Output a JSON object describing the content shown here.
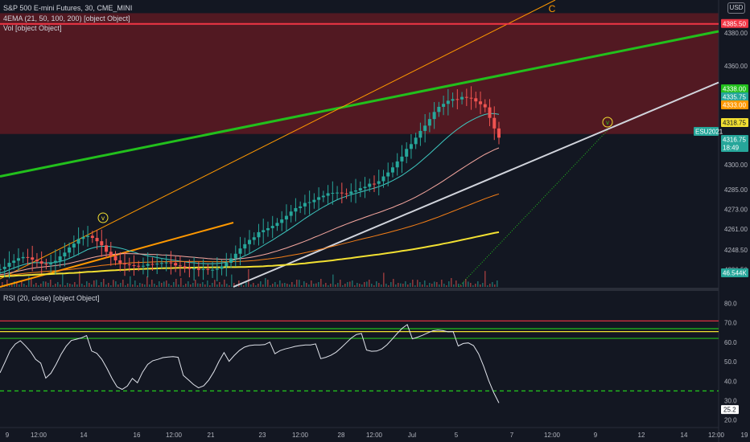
{
  "legend": {
    "title": "S&P 500 E-mini Futures, 30, CME_MINI",
    "ema": "4EMA (21, 50, 100, 200) [object Object]",
    "vol": "Vol [object Object]",
    "rsi": "RSI (20, close) [object Object]"
  },
  "currency": "USD",
  "annotations": {
    "wave_c": "C",
    "wave_v1": "v",
    "wave_v2": "v"
  },
  "colors": {
    "background": "#131722",
    "resistance_zone": "#5a1a22",
    "red_line": "#f23645",
    "green_line": "#22c01c",
    "white_line": "#d1d4dc",
    "orange": "#ff9800",
    "yellow": "#f2e032",
    "teal": "#26a69a",
    "rsi_line": "#e0e3eb"
  },
  "chart_data": [
    {
      "type": "candlestick",
      "title": "S&P 500 E-mini Futures, 30, CME_MINI",
      "x_ticks": [
        "9",
        "12:00",
        "14",
        "16",
        "12:00",
        "21",
        "23",
        "12:00",
        "28",
        "12:00",
        "Jul",
        "5",
        "7",
        "12:00",
        "9",
        "12",
        "14",
        "12:00",
        "19"
      ],
      "y_ticks": [
        4380.0,
        4360.0,
        4300.0,
        4285.0,
        4273.0,
        4261.0,
        4248.5,
        4236.5
      ],
      "ylim": [
        4226,
        4400
      ],
      "price_labels": [
        {
          "text": "4385.50",
          "color": "#f23645"
        },
        {
          "text": "4338.00",
          "color": "#22c01c"
        },
        {
          "text": "4335.75",
          "color": "#26a69a"
        },
        {
          "text": "4333.00",
          "color": "#ff9800"
        },
        {
          "text": "4318.75",
          "color": "#f2e032"
        },
        {
          "text": "ESU2021",
          "color": "#26a69a"
        },
        {
          "text": "4316.75",
          "color": "#26a69a"
        },
        {
          "text": "18:49",
          "color": "#26a69a"
        },
        {
          "text": "46.544K",
          "color": "#26a69a"
        }
      ],
      "series": [
        {
          "name": "price",
          "values": [
            4236.8,
            4238.2,
            4240.6,
            4241.9,
            4243.4,
            4244.1,
            4243.9,
            4242.5,
            4241.5,
            4240.1,
            4239.6,
            4240.6,
            4241.8,
            4244.5,
            4246.8,
            4249.9,
            4252.2,
            4255.1,
            4256.3,
            4257,
            4255.7,
            4253.7,
            4251.2,
            4247.3,
            4244.8,
            4242.1,
            4240.3,
            4239.7,
            4239.2,
            4238.8,
            4238.6,
            4238.8,
            4239.9,
            4239.8,
            4240.1,
            4240.5,
            4240.8,
            4240.5,
            4239,
            4238.5,
            4237.6,
            4236.8,
            4237.1,
            4236.3,
            4236.8,
            4236.4,
            4236.4,
            4237,
            4238.4,
            4240.6,
            4243.3,
            4246.1,
            4249.3,
            4251.9,
            4254.5,
            4256.1,
            4259.2,
            4260.4,
            4261.6,
            4263,
            4264.8,
            4266.9,
            4269.1,
            4271.7,
            4273.8,
            4274.8,
            4276.9,
            4277.4,
            4278.8,
            4280.4,
            4281.3,
            4282.8,
            4283,
            4283.2,
            4282.7,
            4282.4,
            4283.8,
            4284.5,
            4285.9,
            4286.7,
            4288.6,
            4288.5,
            4290.1,
            4293,
            4295.4,
            4298.5,
            4302.1,
            4305,
            4309.7,
            4312.6,
            4316.5,
            4320.6,
            4323.8,
            4327.8,
            4332.1,
            4335.2,
            4337,
            4338.9,
            4339.9,
            4339.7,
            4341.2,
            4340.7,
            4340.4,
            4338.5,
            4336.8,
            4334.9,
            4328.5,
            4322.1,
            4316.5
          ]
        },
        {
          "name": "EMA 21",
          "values": [
            4234.4,
            4235.2,
            4236.4,
            4237.5,
            4238.5,
            4239.4,
            4240.2,
            4240.6,
            4240.7,
            4240.6,
            4240.6,
            4240.6,
            4240.8,
            4241.4,
            4242.2,
            4243.3,
            4244.5,
            4245.9,
            4247.3,
            4248.7,
            4249.6,
            4250.3,
            4250.6,
            4250.6,
            4250.5,
            4250.1,
            4249.5,
            4248.8,
            4247.9,
            4247.1,
            4246.2,
            4245.5,
            4244.8,
            4244.4,
            4243.8,
            4243.3,
            4242.8,
            4242.4,
            4242.1,
            4241.6,
            4241.2,
            4240.8,
            4240.6,
            4240.3,
            4240.2,
            4240.1,
            4240.1,
            4240.2,
            4240.5,
            4240.9,
            4241.6,
            4242.6,
            4243.6,
            4244.9,
            4246.2,
            4247.8,
            4249.4,
            4251.1,
            4252.8,
            4254.4,
            4256.2,
            4258,
            4259.8,
            4261.7,
            4263.6,
            4265.5,
            4267.5,
            4269.3,
            4271.1,
            4272.8,
            4274.5,
            4276,
            4277.5,
            4278.9,
            4280,
            4281,
            4281.9,
            4282.7,
            4283.5,
            4284.3,
            4285.1,
            4285.9,
            4286.8,
            4287.9,
            4289.1,
            4290.5,
            4292,
            4293.6,
            4295.5,
            4297.5,
            4299.6,
            4301.9,
            4304.3,
            4306.8,
            4309.4,
            4312,
            4314.6,
            4317.1,
            4319.4,
            4321.6,
            4323.6,
            4325.4,
            4327,
            4328.4,
            4329.6,
            4330.6,
            4331.2,
            4331.1,
            4330.7
          ]
        },
        {
          "name": "EMA 50",
          "values": [
            4233.4,
            4233.8,
            4234.4,
            4235,
            4235.6,
            4236.2,
            4236.8,
            4237.3,
            4237.7,
            4238,
            4238.3,
            4238.6,
            4238.9,
            4239.3,
            4239.7,
            4240.3,
            4240.9,
            4241.6,
            4242.3,
            4243.1,
            4243.8,
            4244.4,
            4244.9,
            4245.3,
            4245.7,
            4245.9,
            4246.1,
            4246.2,
            4246.2,
            4246.1,
            4246,
            4245.9,
            4245.8,
            4245.7,
            4245.6,
            4245.4,
            4245.3,
            4245.1,
            4244.9,
            4244.7,
            4244.4,
            4244.2,
            4244,
            4243.7,
            4243.5,
            4243.2,
            4243,
            4242.9,
            4242.7,
            4242.7,
            4242.7,
            4242.9,
            4243.1,
            4243.4,
            4243.8,
            4244.3,
            4244.9,
            4245.5,
            4246.2,
            4247,
            4247.8,
            4248.7,
            4249.6,
            4250.6,
            4251.6,
            4252.6,
            4253.7,
            4254.8,
            4256,
            4257.1,
            4258.3,
            4259.5,
            4260.7,
            4261.9,
            4263,
            4264.1,
            4265.2,
            4266.2,
            4267.2,
            4268.2,
            4269.2,
            4270.2,
            4271.1,
            4272.1,
            4273.2,
            4274.2,
            4275.4,
            4276.5,
            4277.8,
            4279.1,
            4280.5,
            4282,
            4283.5,
            4285.2,
            4286.9,
            4288.6,
            4290.4,
            4292.3,
            4294.1,
            4296,
            4297.8,
            4299.6,
            4301.4,
            4303.1,
            4304.8,
            4306.4,
            4307.8,
            4309.2,
            4310.3
          ]
        },
        {
          "name": "EMA 100",
          "values": [
            4232.7,
            4232.9,
            4233.2,
            4233.5,
            4233.8,
            4234.1,
            4234.4,
            4234.7,
            4234.9,
            4235.2,
            4235.4,
            4235.6,
            4235.8,
            4236,
            4236.3,
            4236.5,
            4236.8,
            4237.2,
            4237.5,
            4237.9,
            4238.3,
            4238.6,
            4239,
            4239.3,
            4239.6,
            4239.9,
            4240.1,
            4240.3,
            4240.5,
            4240.7,
            4240.8,
            4240.9,
            4241,
            4241.1,
            4241.2,
            4241.3,
            4241.3,
            4241.4,
            4241.4,
            4241.4,
            4241.4,
            4241.4,
            4241.4,
            4241.4,
            4241.4,
            4241.3,
            4241.3,
            4241.3,
            4241.3,
            4241.3,
            4241.3,
            4241.4,
            4241.5,
            4241.6,
            4241.8,
            4242,
            4242.3,
            4242.6,
            4242.9,
            4243.3,
            4243.7,
            4244.1,
            4244.6,
            4245.1,
            4245.6,
            4246.1,
            4246.7,
            4247.3,
            4247.9,
            4248.6,
            4249.2,
            4249.9,
            4250.6,
            4251.3,
            4252,
            4252.7,
            4253.4,
            4254.1,
            4254.8,
            4255.5,
            4256.1,
            4256.8,
            4257.5,
            4258.2,
            4258.9,
            4259.7,
            4260.4,
            4261.2,
            4262,
            4262.8,
            4263.7,
            4264.6,
            4265.5,
            4266.5,
            4267.5,
            4268.5,
            4269.6,
            4270.7,
            4271.8,
            4272.9,
            4274,
            4275.1,
            4276.2,
            4277.3,
            4278.4,
            4279.5,
            4280.5,
            4281.5,
            4282.4
          ]
        },
        {
          "name": "EMA 200",
          "values": [
            4232.3,
            4232.4,
            4232.6,
            4232.7,
            4232.9,
            4233,
            4233.2,
            4233.3,
            4233.5,
            4233.6,
            4233.7,
            4233.8,
            4234,
            4234.1,
            4234.2,
            4234.4,
            4234.5,
            4234.7,
            4234.9,
            4235.1,
            4235.2,
            4235.4,
            4235.6,
            4235.8,
            4236,
            4236.1,
            4236.3,
            4236.4,
            4236.6,
            4236.7,
            4236.8,
            4236.9,
            4237,
            4237.1,
            4237.2,
            4237.3,
            4237.4,
            4237.4,
            4237.5,
            4237.6,
            4237.6,
            4237.7,
            4237.7,
            4237.8,
            4237.8,
            4237.8,
            4237.9,
            4237.9,
            4237.9,
            4238,
            4238,
            4238,
            4238.1,
            4238.1,
            4238.2,
            4238.3,
            4238.4,
            4238.5,
            4238.7,
            4238.8,
            4239,
            4239.2,
            4239.4,
            4239.6,
            4239.8,
            4240.1,
            4240.3,
            4240.6,
            4240.9,
            4241.2,
            4241.5,
            4241.8,
            4242.1,
            4242.5,
            4242.8,
            4243.2,
            4243.5,
            4243.9,
            4244.3,
            4244.6,
            4245,
            4245.4,
            4245.7,
            4246.1,
            4246.5,
            4246.9,
            4247.3,
            4247.8,
            4248.2,
            4248.6,
            4249.1,
            4249.6,
            4250.1,
            4250.6,
            4251.1,
            4251.6,
            4252.2,
            4252.7,
            4253.3,
            4253.9,
            4254.5,
            4255.1,
            4255.7,
            4256.3,
            4256.9,
            4257.5,
            4258.1,
            4258.7,
            4259.2
          ]
        }
      ]
    },
    {
      "type": "line",
      "title": "RSI (20, close) [object Object]",
      "y_ticks": [
        80.0,
        70.0,
        60.0,
        50.0,
        40.0,
        30.0,
        20.0
      ],
      "ylim": [
        17,
        86
      ],
      "last_value_label": "25.2",
      "levels": [
        {
          "value": 71,
          "color": "#f23645"
        },
        {
          "value": 67,
          "color": "#22c01c"
        },
        {
          "value": 65.5,
          "color": "#f2e032"
        },
        {
          "value": 62,
          "color": "#22c01c"
        },
        {
          "value": 35,
          "color": "#22c01c",
          "dashed": true
        }
      ],
      "series": [
        {
          "name": "RSI",
          "values": [
            47.9,
            52.6,
            57.6,
            60,
            60.8,
            57.3,
            53.4,
            48.5,
            45.7,
            45.2,
            46.8,
            50.4,
            54.7,
            58,
            60,
            59.8,
            59.6,
            59.9,
            59.1,
            57.1,
            53.1,
            47.5,
            41.4,
            36.2,
            34,
            34.8,
            37.8,
            42.8,
            47.3,
            50.4,
            51.4,
            51.2,
            51.2,
            50.6,
            49.9,
            48.7,
            46.6,
            43.4,
            40.1,
            37.5,
            37.6,
            39.7,
            43,
            47.4,
            51.1,
            53.8,
            55.9,
            57.5,
            58.4,
            58.3,
            57.7,
            56.8,
            56.1,
            56.5,
            57.7,
            58.4,
            58.4,
            58.1,
            57.9,
            57.4,
            56.8,
            55.9,
            55.6,
            55.2,
            55,
            55.1,
            55.8,
            57.2,
            58.8,
            60.4,
            61.3,
            60.9,
            59.6,
            58.1,
            57.3,
            57.5,
            58.7,
            60.6,
            62.7,
            64.5,
            65.5,
            65.4,
            65.3,
            65.4,
            65.7,
            65.9,
            65.4,
            64.2,
            62.7,
            61.9,
            61.7,
            62.1,
            61.5,
            59.2,
            54.1,
            46.8,
            38.5,
            31.3,
            25.2
          ]
        }
      ]
    }
  ]
}
